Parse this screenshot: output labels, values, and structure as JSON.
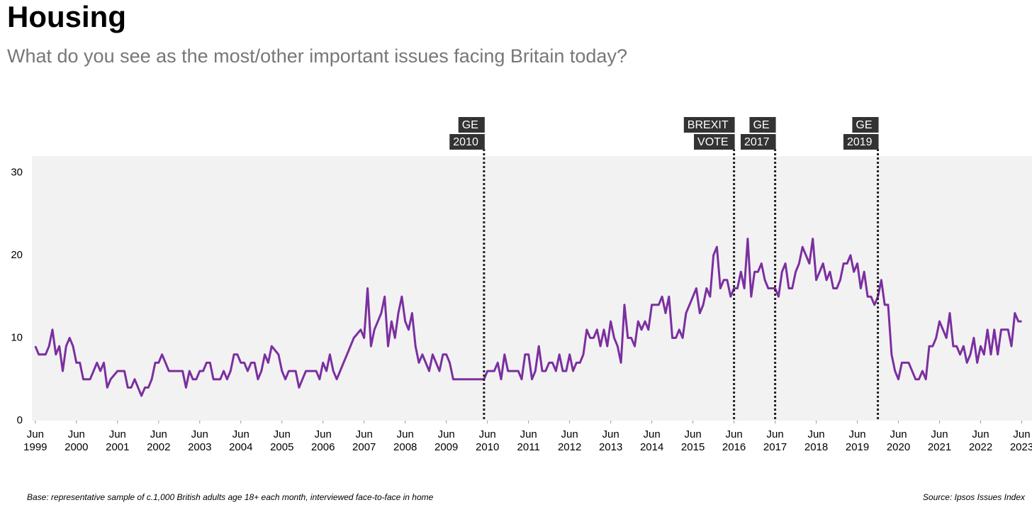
{
  "chart_data": {
    "type": "line",
    "title": "Housing",
    "subtitle": "What do you see as the most/other important issues facing Britain today?",
    "footnote": "Base: representative sample of c.1,000 British adults age 18+ each month, interviewed face-to-face in home",
    "source": "Source: Ipsos Issues Index",
    "xlim": [
      "1999-05",
      "2023-09"
    ],
    "ylim": [
      0,
      32
    ],
    "yticks": [
      0,
      10,
      20,
      30
    ],
    "xticks": [
      {
        "value": "1999-06",
        "label": [
          "Jun",
          "1999"
        ]
      },
      {
        "value": "2000-06",
        "label": [
          "Jun",
          "2000"
        ]
      },
      {
        "value": "2001-06",
        "label": [
          "Jun",
          "2001"
        ]
      },
      {
        "value": "2002-06",
        "label": [
          "Jun",
          "2002"
        ]
      },
      {
        "value": "2003-06",
        "label": [
          "Jun",
          "2003"
        ]
      },
      {
        "value": "2004-06",
        "label": [
          "Jun",
          "2004"
        ]
      },
      {
        "value": "2005-06",
        "label": [
          "Jun",
          "2005"
        ]
      },
      {
        "value": "2006-06",
        "label": [
          "Jun",
          "2006"
        ]
      },
      {
        "value": "2007-06",
        "label": [
          "Jun",
          "2007"
        ]
      },
      {
        "value": "2008-06",
        "label": [
          "Jun",
          "2008"
        ]
      },
      {
        "value": "2009-06",
        "label": [
          "Jun",
          "2009"
        ]
      },
      {
        "value": "2010-06",
        "label": [
          "Jun",
          "2010"
        ]
      },
      {
        "value": "2011-06",
        "label": [
          "Jun",
          "2011"
        ]
      },
      {
        "value": "2012-06",
        "label": [
          "Jun",
          "2012"
        ]
      },
      {
        "value": "2013-06",
        "label": [
          "Jun",
          "2013"
        ]
      },
      {
        "value": "2014-06",
        "label": [
          "Jun",
          "2014"
        ]
      },
      {
        "value": "2015-06",
        "label": [
          "Jun",
          "2015"
        ]
      },
      {
        "value": "2016-06",
        "label": [
          "Jun",
          "2016"
        ]
      },
      {
        "value": "2017-06",
        "label": [
          "Jun",
          "2017"
        ]
      },
      {
        "value": "2018-06",
        "label": [
          "Jun",
          "2018"
        ]
      },
      {
        "value": "2019-06",
        "label": [
          "Jun",
          "2019"
        ]
      },
      {
        "value": "2020-06",
        "label": [
          "Jun",
          "2020"
        ]
      },
      {
        "value": "2021-06",
        "label": [
          "Jun",
          "2021"
        ]
      },
      {
        "value": "2022-06",
        "label": [
          "Jun",
          "2022"
        ]
      },
      {
        "value": "2023-06",
        "label": [
          "Jun",
          "2023"
        ]
      }
    ],
    "events": [
      {
        "x": "2010-05",
        "label": [
          "GE",
          "2010"
        ]
      },
      {
        "x": "2016-06",
        "label": [
          "BREXIT",
          "VOTE"
        ]
      },
      {
        "x": "2017-06",
        "label": [
          "GE",
          "2017"
        ]
      },
      {
        "x": "2019-12",
        "label": [
          "GE",
          "2019"
        ]
      }
    ],
    "x": [
      "1999-06",
      "1999-07",
      "1999-08",
      "1999-09",
      "1999-10",
      "1999-11",
      "1999-12",
      "2000-01",
      "2000-02",
      "2000-03",
      "2000-04",
      "2000-05",
      "2000-06",
      "2000-07",
      "2000-08",
      "2000-09",
      "2000-10",
      "2000-11",
      "2000-12",
      "2001-01",
      "2001-02",
      "2001-03",
      "2001-04",
      "2001-05",
      "2001-06",
      "2001-07",
      "2001-08",
      "2001-09",
      "2001-10",
      "2001-11",
      "2001-12",
      "2002-01",
      "2002-02",
      "2002-03",
      "2002-04",
      "2002-05",
      "2002-06",
      "2002-07",
      "2002-08",
      "2002-09",
      "2002-10",
      "2002-11",
      "2002-12",
      "2003-01",
      "2003-02",
      "2003-03",
      "2003-04",
      "2003-05",
      "2003-06",
      "2003-07",
      "2003-08",
      "2003-09",
      "2003-10",
      "2003-11",
      "2003-12",
      "2004-01",
      "2004-02",
      "2004-03",
      "2004-04",
      "2004-05",
      "2004-06",
      "2004-07",
      "2004-08",
      "2004-09",
      "2004-10",
      "2004-11",
      "2004-12",
      "2005-01",
      "2005-02",
      "2005-03",
      "2005-04",
      "2005-05",
      "2005-06",
      "2005-07",
      "2005-08",
      "2005-09",
      "2005-10",
      "2005-11",
      "2005-12",
      "2006-01",
      "2006-02",
      "2006-03",
      "2006-04",
      "2006-05",
      "2006-06",
      "2006-07",
      "2006-08",
      "2006-09",
      "2006-10",
      "2006-11",
      "2006-12",
      "2007-01",
      "2007-02",
      "2007-03",
      "2007-04",
      "2007-05",
      "2007-06",
      "2007-07",
      "2007-08",
      "2007-09",
      "2007-10",
      "2007-11",
      "2007-12",
      "2008-01",
      "2008-02",
      "2008-03",
      "2008-04",
      "2008-05",
      "2008-06",
      "2008-07",
      "2008-08",
      "2008-09",
      "2008-10",
      "2008-11",
      "2008-12",
      "2009-01",
      "2009-02",
      "2009-03",
      "2009-04",
      "2009-05",
      "2009-06",
      "2009-07",
      "2009-08",
      "2009-09",
      "2009-10",
      "2009-11",
      "2009-12",
      "2010-01",
      "2010-02",
      "2010-03",
      "2010-04",
      "2010-05",
      "2010-06",
      "2010-07",
      "2010-08",
      "2010-09",
      "2010-10",
      "2010-11",
      "2010-12",
      "2011-01",
      "2011-02",
      "2011-03",
      "2011-04",
      "2011-05",
      "2011-06",
      "2011-07",
      "2011-08",
      "2011-09",
      "2011-10",
      "2011-11",
      "2011-12",
      "2012-01",
      "2012-02",
      "2012-03",
      "2012-04",
      "2012-05",
      "2012-06",
      "2012-07",
      "2012-08",
      "2012-09",
      "2012-10",
      "2012-11",
      "2012-12",
      "2013-01",
      "2013-02",
      "2013-03",
      "2013-04",
      "2013-05",
      "2013-06",
      "2013-07",
      "2013-08",
      "2013-09",
      "2013-10",
      "2013-11",
      "2013-12",
      "2014-01",
      "2014-02",
      "2014-03",
      "2014-04",
      "2014-05",
      "2014-06",
      "2014-07",
      "2014-08",
      "2014-09",
      "2014-10",
      "2014-11",
      "2014-12",
      "2015-01",
      "2015-02",
      "2015-03",
      "2015-04",
      "2015-05",
      "2015-06",
      "2015-07",
      "2015-08",
      "2015-09",
      "2015-10",
      "2015-11",
      "2015-12",
      "2016-01",
      "2016-02",
      "2016-03",
      "2016-04",
      "2016-05",
      "2016-06",
      "2016-07",
      "2016-08",
      "2016-09",
      "2016-10",
      "2016-11",
      "2016-12",
      "2017-01",
      "2017-02",
      "2017-03",
      "2017-04",
      "2017-05",
      "2017-06",
      "2017-07",
      "2017-08",
      "2017-09",
      "2017-10",
      "2017-11",
      "2017-12",
      "2018-01",
      "2018-02",
      "2018-03",
      "2018-04",
      "2018-05",
      "2018-06",
      "2018-07",
      "2018-08",
      "2018-09",
      "2018-10",
      "2018-11",
      "2018-12",
      "2019-01",
      "2019-02",
      "2019-03",
      "2019-04",
      "2019-05",
      "2019-06",
      "2019-07",
      "2019-08",
      "2019-09",
      "2019-10",
      "2019-11",
      "2019-12",
      "2020-01",
      "2020-02",
      "2020-03",
      "2020-04",
      "2020-05",
      "2020-06",
      "2020-07",
      "2020-08",
      "2020-09",
      "2020-10",
      "2020-11",
      "2020-12",
      "2021-01",
      "2021-02",
      "2021-03",
      "2021-04",
      "2021-05",
      "2021-06",
      "2021-07",
      "2021-08",
      "2021-09",
      "2021-10",
      "2021-11",
      "2021-12",
      "2022-01",
      "2022-02",
      "2022-03",
      "2022-04",
      "2022-05",
      "2022-06",
      "2022-07",
      "2022-08",
      "2022-09",
      "2022-10",
      "2022-11",
      "2022-12",
      "2023-01",
      "2023-02",
      "2023-03",
      "2023-04",
      "2023-05",
      "2023-06"
    ],
    "series": [
      {
        "name": "Housing",
        "color": "#7b2fa0",
        "values": [
          9,
          8,
          8,
          8,
          9,
          11,
          8,
          9,
          6,
          9,
          10,
          9,
          7,
          7,
          5,
          5,
          5,
          6,
          7,
          6,
          7,
          4,
          5,
          5.5,
          6,
          6,
          6,
          4,
          4,
          5,
          4,
          3,
          4,
          4,
          5,
          7,
          7,
          8,
          7,
          6,
          6,
          6,
          6,
          6,
          4,
          6,
          5,
          5,
          6,
          6,
          7,
          7,
          5,
          5,
          5,
          6,
          5,
          6,
          8,
          8,
          7,
          7,
          6,
          7,
          7,
          5,
          6,
          8,
          7,
          9,
          8.5,
          8,
          6,
          5,
          6,
          6,
          6,
          4,
          5,
          6,
          6,
          6,
          6,
          5,
          7,
          6,
          8,
          6,
          5,
          6,
          7,
          8,
          9,
          10,
          10.5,
          11,
          10,
          16,
          9,
          11,
          12,
          13,
          15,
          9,
          12,
          10,
          13,
          15,
          12,
          11,
          13,
          9,
          7,
          8,
          7,
          6,
          8,
          7,
          6,
          8,
          8,
          7,
          5,
          5,
          5,
          5,
          5,
          5,
          5,
          5,
          5,
          5,
          6,
          6,
          6,
          7,
          5,
          8,
          6,
          6,
          6,
          6,
          5,
          8,
          8,
          5,
          6,
          9,
          6,
          6,
          7,
          7,
          6,
          8,
          6,
          6,
          8,
          6,
          7,
          7,
          8,
          11,
          10,
          10,
          11,
          9,
          11,
          9,
          12,
          10,
          9,
          7,
          14,
          10,
          10,
          9,
          12,
          11,
          12,
          11,
          14,
          14,
          14,
          15,
          13,
          15,
          10,
          10,
          11,
          10,
          13,
          14,
          15,
          16,
          13,
          14,
          16,
          15,
          20,
          21,
          16,
          17,
          17,
          15,
          16,
          16,
          18,
          16,
          22,
          15,
          18,
          18,
          19,
          17,
          16,
          16,
          16,
          15,
          18,
          19,
          16,
          16,
          18,
          19,
          21,
          20,
          19,
          22,
          17,
          18,
          19,
          17,
          18,
          16,
          16,
          17,
          19,
          19,
          20,
          18,
          19,
          16,
          18,
          15,
          15,
          14,
          15,
          17,
          14,
          14,
          8,
          6,
          5,
          7,
          7,
          7,
          6,
          5,
          5,
          6,
          5,
          9,
          9,
          10,
          12,
          11,
          10,
          13,
          9,
          9,
          8,
          9,
          7,
          8,
          10,
          7,
          9,
          8,
          11,
          8,
          11,
          8,
          11,
          11,
          11,
          9,
          13,
          12,
          12
        ]
      }
    ]
  }
}
